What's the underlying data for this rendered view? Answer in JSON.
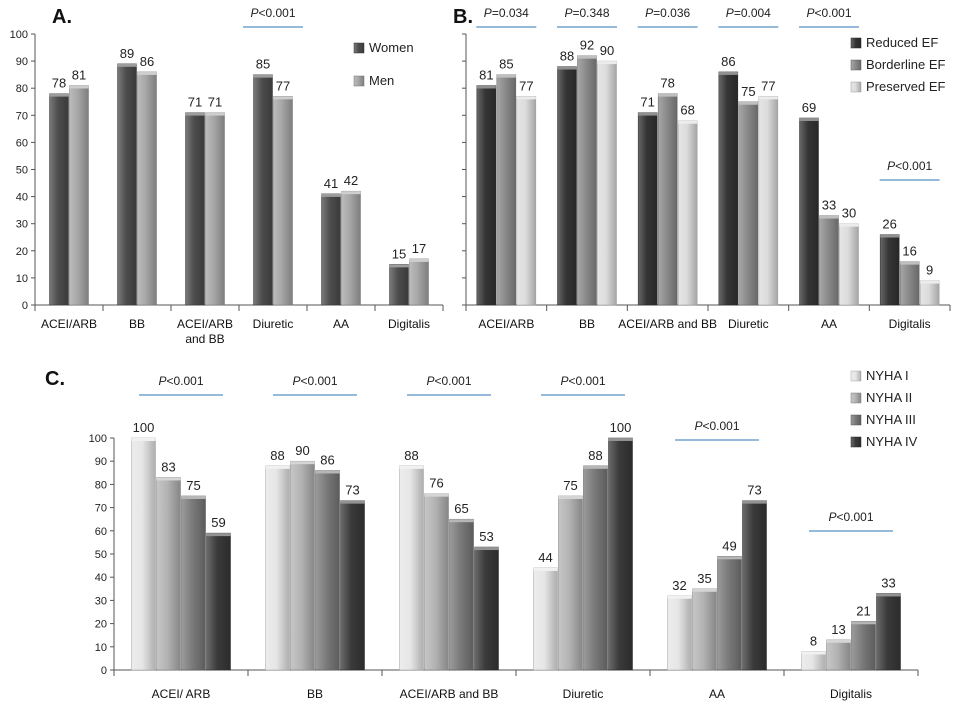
{
  "chart_data": [
    {
      "panel": "A.",
      "type": "bar",
      "ylim": [
        0,
        100
      ],
      "yticks": [
        0,
        10,
        20,
        30,
        40,
        50,
        60,
        70,
        80,
        90,
        100
      ],
      "categories": [
        [
          "ACEI/ARB"
        ],
        [
          "BB"
        ],
        [
          "ACEI/ARB",
          "and BB"
        ],
        [
          "Diuretic"
        ],
        [
          "AA"
        ],
        [
          "Digitalis"
        ]
      ],
      "series": [
        {
          "name": "Women",
          "values": [
            78,
            89,
            71,
            85,
            41,
            15
          ],
          "color": "#4d4d4d"
        },
        {
          "name": "Men",
          "values": [
            81,
            86,
            71,
            77,
            42,
            17
          ],
          "color": "#a6a6a6"
        }
      ],
      "pvalues": [
        {
          "category": 3,
          "prefix": "P",
          "text": "<0.001"
        }
      ],
      "legend": "top-right"
    },
    {
      "panel": "B.",
      "type": "bar",
      "ylim": [
        0,
        100
      ],
      "categories": [
        [
          "ACEI/ARB"
        ],
        [
          "BB"
        ],
        [
          "ACEI/ARB and BB"
        ],
        [
          "Diuretic"
        ],
        [
          "AA"
        ],
        [
          "Digitalis"
        ]
      ],
      "series": [
        {
          "name": "Reduced EF",
          "values": [
            81,
            88,
            71,
            86,
            69,
            26
          ],
          "color": "#353535"
        },
        {
          "name": "Borderline EF",
          "values": [
            85,
            92,
            78,
            75,
            33,
            16
          ],
          "color": "#8a8a8a"
        },
        {
          "name": "Preserved EF",
          "values": [
            77,
            90,
            68,
            77,
            30,
            9
          ],
          "color": "#dcdcdc"
        }
      ],
      "pvalues": [
        {
          "category": 0,
          "prefix": "P",
          "text": "=0.034"
        },
        {
          "category": 1,
          "prefix": "P",
          "text": "=0.348"
        },
        {
          "category": 2,
          "prefix": "P",
          "text": "=0.036"
        },
        {
          "category": 3,
          "prefix": "P",
          "text": "=0.004"
        },
        {
          "category": 4,
          "prefix": "P",
          "text": "<0.001"
        },
        {
          "category": 5,
          "prefix": "P",
          "text": "<0.001"
        }
      ],
      "legend": "top-right"
    },
    {
      "panel": "C.",
      "type": "bar",
      "ylim": [
        0,
        100
      ],
      "yticks": [
        0,
        10,
        20,
        30,
        40,
        50,
        60,
        70,
        80,
        90,
        100
      ],
      "categories": [
        [
          "ACEI/ ARB"
        ],
        [
          "BB"
        ],
        [
          "ACEI/ARB and BB"
        ],
        [
          "Diuretic"
        ],
        [
          "AA"
        ],
        [
          "Digitalis"
        ]
      ],
      "series": [
        {
          "name": "NYHA I",
          "values": [
            100,
            88,
            88,
            44,
            32,
            8
          ],
          "color": "#e6e6e6"
        },
        {
          "name": "NYHA II",
          "values": [
            83,
            90,
            76,
            75,
            35,
            13
          ],
          "color": "#b3b3b3"
        },
        {
          "name": "NYHA III",
          "values": [
            75,
            86,
            65,
            88,
            49,
            21
          ],
          "color": "#7a7a7a"
        },
        {
          "name": "NYHA IV",
          "values": [
            59,
            73,
            53,
            100,
            73,
            33
          ],
          "color": "#3a3a3a"
        }
      ],
      "pvalues": [
        {
          "category": 0,
          "prefix": "P",
          "text": "<0.001"
        },
        {
          "category": 1,
          "prefix": "P",
          "text": "<0.001"
        },
        {
          "category": 2,
          "prefix": "P",
          "text": "<0.001"
        },
        {
          "category": 3,
          "prefix": "P",
          "text": "<0.001"
        },
        {
          "category": 4,
          "prefix": "P",
          "text": "<0.001"
        },
        {
          "category": 5,
          "prefix": "P",
          "text": "<0.001"
        }
      ],
      "legend": "top-right"
    }
  ],
  "colors": {
    "pline": "#2e75b6",
    "axis": "#555555"
  }
}
